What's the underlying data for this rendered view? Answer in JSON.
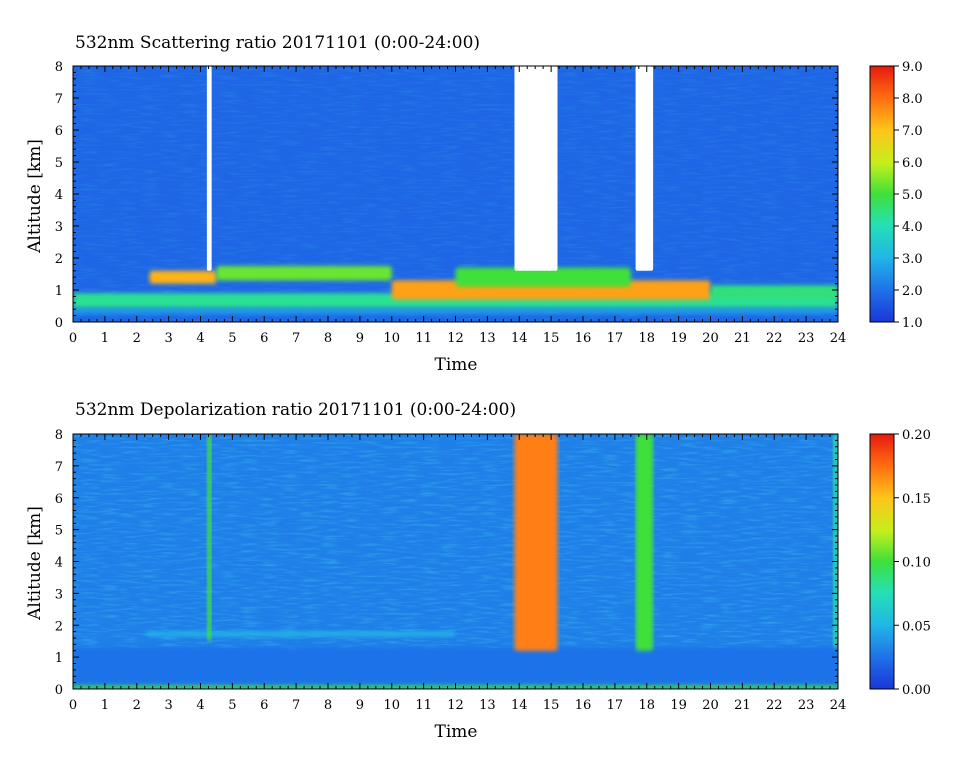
{
  "chart_data": [
    {
      "type": "heatmap",
      "title": "532nm Scattering ratio  20171101 (0:00-24:00)",
      "xlabel": "Time",
      "ylabel": "Altitude [km]",
      "xlim": [
        0,
        24
      ],
      "ylim": [
        0,
        8
      ],
      "x_ticks": [
        "0",
        "1",
        "2",
        "3",
        "4",
        "5",
        "6",
        "7",
        "8",
        "9",
        "10",
        "11",
        "12",
        "13",
        "14",
        "15",
        "16",
        "17",
        "18",
        "19",
        "20",
        "21",
        "22",
        "23",
        "24"
      ],
      "y_ticks": [
        "0",
        "1",
        "2",
        "3",
        "4",
        "5",
        "6",
        "7",
        "8"
      ],
      "colorbar": {
        "range": [
          1.0,
          9.0
        ],
        "ticks": [
          "1.0",
          "2.0",
          "3.0",
          "4.0",
          "5.0",
          "6.0",
          "7.0",
          "8.0",
          "9.0"
        ]
      },
      "background_value": 1.8,
      "layers": [
        {
          "from_km": 0.25,
          "to_km": 0.45,
          "value": 2.6
        },
        {
          "from_km": 0.45,
          "to_km": 0.9,
          "value": 4.3
        }
      ],
      "features": [
        {
          "t_start": 2.4,
          "t_end": 4.5,
          "alt_low_km": 1.2,
          "alt_high_km": 1.6,
          "value": 7.2
        },
        {
          "t_start": 4.5,
          "t_end": 10.0,
          "alt_low_km": 1.3,
          "alt_high_km": 1.75,
          "value": 5.3
        },
        {
          "t_start": 10.0,
          "t_end": 20.0,
          "alt_low_km": 0.7,
          "alt_high_km": 1.3,
          "value": 7.4
        },
        {
          "t_start": 12.0,
          "t_end": 17.5,
          "alt_low_km": 1.1,
          "alt_high_km": 1.7,
          "value": 5.0
        },
        {
          "t_start": 20.0,
          "t_end": 24.0,
          "alt_low_km": 0.75,
          "alt_high_km": 1.15,
          "value": 4.5
        }
      ],
      "no_data_gaps": [
        {
          "t_start": 4.2,
          "t_end": 4.35,
          "alt_low_km": 1.6
        },
        {
          "t_start": 13.85,
          "t_end": 15.2,
          "alt_low_km": 1.6
        },
        {
          "t_start": 17.65,
          "t_end": 18.2,
          "alt_low_km": 1.6
        }
      ]
    },
    {
      "type": "heatmap",
      "title": "532nm Depolarization ratio  20171101 (0:00-24:00)",
      "xlabel": "Time",
      "ylabel": "Altitude [km]",
      "xlim": [
        0,
        24
      ],
      "ylim": [
        0,
        8
      ],
      "x_ticks": [
        "0",
        "1",
        "2",
        "3",
        "4",
        "5",
        "6",
        "7",
        "8",
        "9",
        "10",
        "11",
        "12",
        "13",
        "14",
        "15",
        "16",
        "17",
        "18",
        "19",
        "20",
        "21",
        "22",
        "23",
        "24"
      ],
      "y_ticks": [
        "0",
        "1",
        "2",
        "3",
        "4",
        "5",
        "6",
        "7",
        "8"
      ],
      "colorbar": {
        "range": [
          0.0,
          0.2
        ],
        "ticks": [
          "0.00",
          "0.05",
          "0.10",
          "0.15",
          "0.20"
        ]
      },
      "background_value": 0.03,
      "layers": [
        {
          "from_km": 0.0,
          "to_km": 0.15,
          "value": 0.1
        },
        {
          "from_km": 0.15,
          "to_km": 1.3,
          "value": 0.025
        }
      ],
      "features": [
        {
          "t_start": 2.3,
          "t_end": 12.0,
          "alt_low_km": 1.65,
          "alt_high_km": 1.8,
          "value": 0.05
        },
        {
          "t_start": 4.2,
          "t_end": 4.35,
          "alt_low_km": 1.5,
          "alt_high_km": 8.0,
          "value": 0.1
        },
        {
          "t_start": 13.85,
          "t_end": 15.2,
          "alt_low_km": 1.2,
          "alt_high_km": 8.0,
          "value": 0.17
        },
        {
          "t_start": 17.65,
          "t_end": 18.2,
          "alt_low_km": 1.2,
          "alt_high_km": 8.0,
          "value": 0.1
        },
        {
          "t_start": 23.85,
          "t_end": 24.0,
          "alt_low_km": 1.3,
          "alt_high_km": 8.0,
          "value": 0.08
        }
      ]
    }
  ]
}
